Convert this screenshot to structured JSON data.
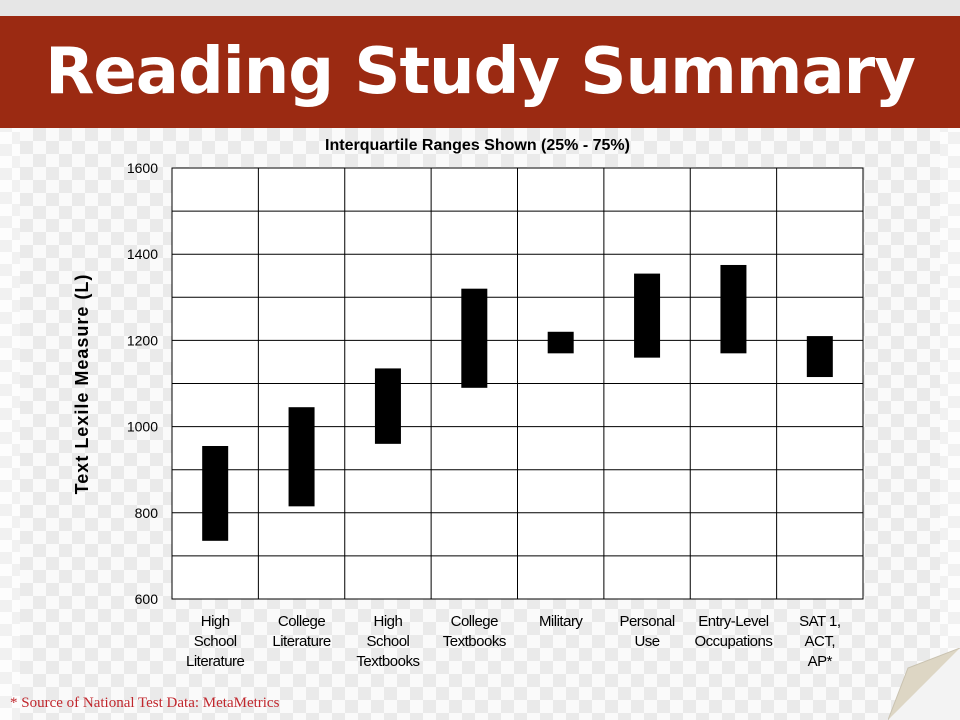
{
  "slide": {
    "title": "Reading Study Summary",
    "footnote": "* Source of National Test Data: MetaMetrics",
    "colors": {
      "banner": "#9b2a12",
      "footnote": "#c0272d",
      "bar": "#000000"
    }
  },
  "chart_data": {
    "type": "bar",
    "title": "Interquartile Ranges Shown (25% - 75%)",
    "ylabel": "Text Lexile Measure (L)",
    "xlabel": "",
    "ylim": [
      600,
      1600
    ],
    "yticks": [
      600,
      800,
      1000,
      1200,
      1400,
      1600
    ],
    "grid": true,
    "categories": [
      [
        "High",
        "School",
        "Literature"
      ],
      [
        "College",
        "Literature"
      ],
      [
        "High",
        "School",
        "Textbooks"
      ],
      [
        "College",
        "Textbooks"
      ],
      [
        "Military"
      ],
      [
        "Personal",
        "Use"
      ],
      [
        "Entry-Level",
        "Occupations"
      ],
      [
        "SAT 1,",
        "ACT,",
        "AP*"
      ]
    ],
    "ranges": [
      [
        735,
        955
      ],
      [
        815,
        1045
      ],
      [
        960,
        1135
      ],
      [
        1090,
        1320
      ],
      [
        1170,
        1220
      ],
      [
        1160,
        1355
      ],
      [
        1170,
        1375
      ],
      [
        1115,
        1210
      ]
    ]
  }
}
